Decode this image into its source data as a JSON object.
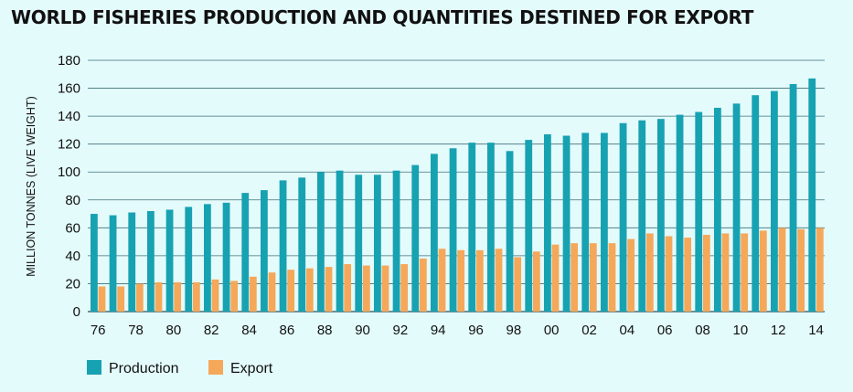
{
  "chart_data": {
    "type": "bar",
    "title": "WORLD FISHERIES PRODUCTION AND QUANTITIES DESTINED FOR EXPORT",
    "ylabel": "MILLION TONNES (LIVE WEIGHT)",
    "xlabel": "",
    "ylim": [
      0,
      180
    ],
    "y_ticks": [
      0,
      20,
      40,
      60,
      80,
      100,
      120,
      140,
      160,
      180
    ],
    "grid": true,
    "legend_position": "bottom-left",
    "categories": [
      "76",
      "77",
      "78",
      "79",
      "80",
      "81",
      "82",
      "83",
      "84",
      "85",
      "86",
      "87",
      "88",
      "89",
      "90",
      "91",
      "92",
      "93",
      "94",
      "95",
      "96",
      "97",
      "98",
      "99",
      "00",
      "01",
      "02",
      "03",
      "04",
      "05",
      "06",
      "07",
      "08",
      "09",
      "10",
      "11",
      "12",
      "13",
      "14"
    ],
    "x_tick_labels": [
      "76",
      "78",
      "80",
      "82",
      "84",
      "86",
      "88",
      "90",
      "92",
      "94",
      "96",
      "98",
      "00",
      "02",
      "04",
      "06",
      "08",
      "10",
      "12",
      "14"
    ],
    "series": [
      {
        "name": "Production",
        "color": "#17a2b2",
        "values": [
          70,
          69,
          71,
          72,
          73,
          75,
          77,
          78,
          85,
          87,
          94,
          96,
          100,
          101,
          98,
          98,
          101,
          105,
          113,
          117,
          121,
          121,
          115,
          123,
          127,
          126,
          128,
          128,
          135,
          137,
          138,
          141,
          143,
          146,
          149,
          155,
          158,
          163,
          167
        ]
      },
      {
        "name": "Export",
        "color": "#f5a85a",
        "values": [
          18,
          18,
          20,
          21,
          21,
          21,
          23,
          22,
          25,
          28,
          30,
          31,
          32,
          34,
          33,
          33,
          34,
          38,
          45,
          44,
          44,
          45,
          39,
          43,
          48,
          49,
          49,
          49,
          52,
          56,
          54,
          53,
          55,
          56,
          56,
          58,
          60,
          59,
          60
        ]
      }
    ]
  }
}
